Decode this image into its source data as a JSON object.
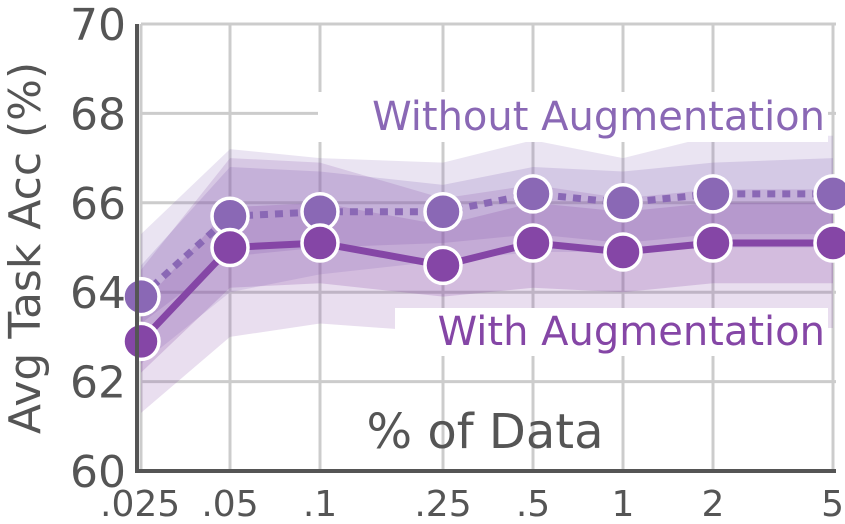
{
  "chart_data": {
    "type": "line",
    "categories": [
      ".025",
      ".05",
      ".1",
      ".25",
      ".5",
      "1",
      "2",
      "5"
    ],
    "xlabel": "% of Data",
    "ylabel": "Avg Task Acc (%)",
    "ylim": [
      60,
      70
    ],
    "yticks": [
      60,
      62,
      64,
      66,
      68,
      70
    ],
    "grid": true,
    "series": [
      {
        "name": "Without Augmentation",
        "style": "dotted",
        "color": "#8a68b5",
        "values": [
          63.9,
          65.7,
          65.8,
          65.8,
          66.2,
          66.0,
          66.2,
          66.2
        ],
        "band_inner_low": [
          63.3,
          64.8,
          65.0,
          65.1,
          65.3,
          65.1,
          65.3,
          65.3
        ],
        "band_inner_high": [
          64.6,
          66.8,
          66.7,
          66.4,
          66.8,
          66.7,
          66.9,
          67.0
        ],
        "band_outer_low": [
          62.4,
          64.0,
          64.4,
          64.7,
          64.9,
          64.9,
          65.0,
          65.0
        ],
        "band_outer_high": [
          65.3,
          67.2,
          67.0,
          66.9,
          67.4,
          67.0,
          67.5,
          67.5
        ]
      },
      {
        "name": "With Augmentation",
        "style": "solid",
        "color": "#8546a6",
        "values": [
          62.9,
          65.0,
          65.1,
          64.6,
          65.1,
          64.9,
          65.1,
          65.1
        ],
        "band_inner_low": [
          62.2,
          64.1,
          64.2,
          63.9,
          64.1,
          64.0,
          64.2,
          64.2
        ],
        "band_inner_high": [
          63.7,
          65.9,
          66.0,
          65.5,
          66.0,
          65.8,
          66.0,
          66.0
        ],
        "band_outer_low": [
          61.3,
          63.0,
          63.3,
          63.1,
          63.1,
          63.1,
          63.2,
          63.2
        ],
        "band_outer_high": [
          64.5,
          67.0,
          66.9,
          66.1,
          66.4,
          66.1,
          66.3,
          66.3
        ]
      }
    ],
    "annotations": {
      "without": "Without Augmentation",
      "with": "With Augmentation"
    }
  }
}
